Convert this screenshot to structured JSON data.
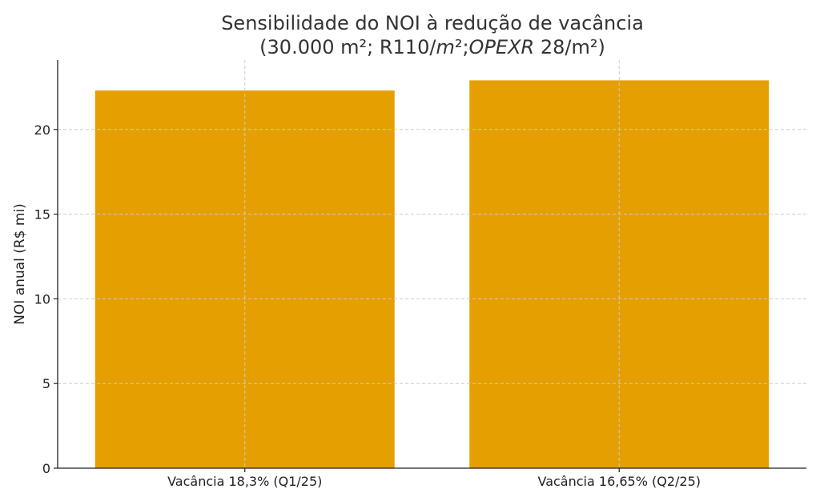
{
  "chart_data": {
    "type": "bar",
    "title_line1": "Sensibilidade do NOI à redução de vacância",
    "title_line2_parts": [
      {
        "text": "(30.000 m²; R110/",
        "italic": false
      },
      {
        "text": "m",
        "italic": true
      },
      {
        "text": "²;",
        "italic": false
      },
      {
        "text": "OPEXR",
        "italic": true
      },
      {
        "text": " 28/m²)",
        "italic": false
      }
    ],
    "categories": [
      "Vacância 18,3% (Q1/25)",
      "Vacância 16,65% (Q2/25)"
    ],
    "values": [
      22.3,
      22.9
    ],
    "xlabel": "",
    "ylabel": "NOI anual (R$ mi)",
    "ylim": [
      0,
      24.1
    ],
    "yticks": [
      0,
      5,
      10,
      15,
      20
    ],
    "grid": true,
    "colors": {
      "bar": "#E69F00",
      "axis": "#222222",
      "grid": "#cccccc"
    }
  }
}
